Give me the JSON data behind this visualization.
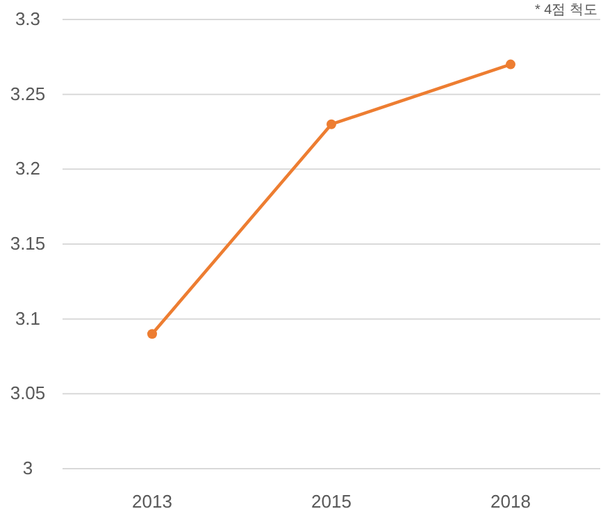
{
  "chart_data": {
    "type": "line",
    "categories": [
      "2013",
      "2015",
      "2018"
    ],
    "series": [
      {
        "color": "#ed7d31",
        "values": [
          3.09,
          3.23,
          3.27
        ]
      }
    ],
    "ylim": [
      3,
      3.3
    ],
    "yticks": [
      3,
      3.05,
      3.1,
      3.15,
      3.2,
      3.25,
      3.3
    ],
    "grid": "y",
    "marker": "circle",
    "line_style": "solid",
    "annotations": [
      "* 4점 척도"
    ]
  }
}
